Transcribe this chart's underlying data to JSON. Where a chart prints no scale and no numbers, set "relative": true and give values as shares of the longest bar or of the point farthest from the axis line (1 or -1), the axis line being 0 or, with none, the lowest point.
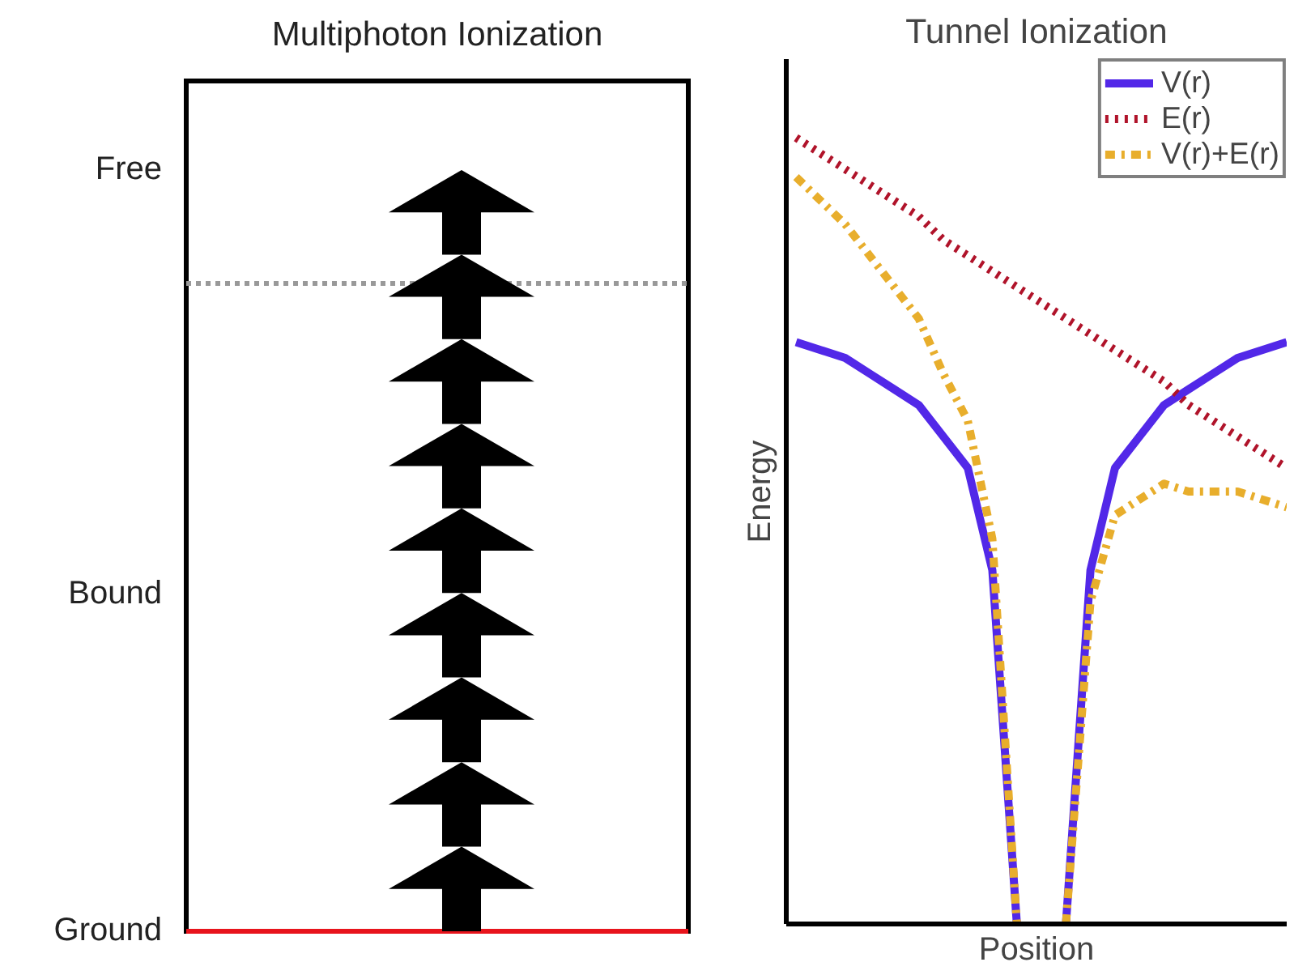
{
  "chart_data": [
    {
      "type": "other",
      "title": "Multiphoton Ionization",
      "annotations": [
        "Free",
        "Bound",
        "Ground"
      ]
    },
    {
      "type": "line",
      "title": "Tunnel Ionization",
      "xlabel": "Position",
      "ylabel": "Energy",
      "relative": true,
      "legend": "top right",
      "categories": [
        null,
        null,
        null,
        null,
        null,
        null,
        null,
        null,
        null,
        null,
        null,
        null,
        null,
        null,
        null,
        null,
        null,
        null,
        null,
        null,
        null
      ],
      "series": [
        {
          "name": "V(r)",
          "color": "#5228e8",
          "line_style": "solid",
          "values": [
            0.74,
            0.73,
            0.72,
            0.7,
            0.68,
            0.66,
            0.62,
            0.58,
            0.45,
            0.0,
            null,
            0.0,
            0.45,
            0.58,
            0.62,
            0.66,
            0.68,
            0.7,
            0.72,
            0.73,
            0.74
          ]
        },
        {
          "name": "E(r)",
          "color": "#b0132a",
          "line_style": "dotted",
          "values": [
            1.0,
            0.98,
            0.96,
            0.94,
            0.92,
            0.9,
            0.87,
            0.85,
            0.83,
            0.81,
            0.79,
            0.77,
            0.75,
            0.73,
            0.71,
            0.69,
            0.66,
            0.64,
            0.62,
            0.6,
            0.58
          ]
        },
        {
          "name": "V(r)+E(r)",
          "color": "#e8ae2c",
          "line_style": "dashdot",
          "values": [
            0.95,
            0.92,
            0.89,
            0.85,
            0.81,
            0.77,
            0.7,
            0.64,
            0.49,
            0.0,
            null,
            0.0,
            0.41,
            0.52,
            0.54,
            0.56,
            0.55,
            0.55,
            0.55,
            0.54,
            0.53
          ]
        }
      ]
    }
  ]
}
